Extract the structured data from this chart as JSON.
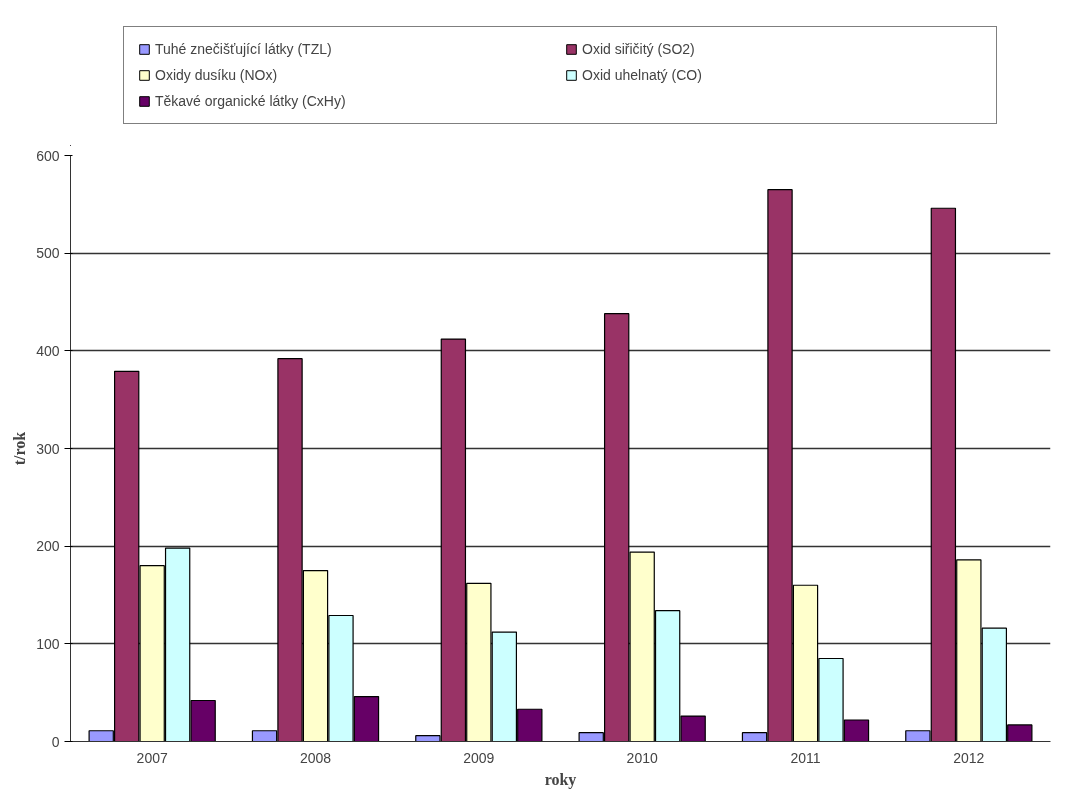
{
  "chart_data": {
    "type": "bar",
    "xlabel": "roky",
    "ylabel": "t/rok",
    "categories": [
      "2007",
      "2008",
      "2009",
      "2010",
      "2011",
      "2012"
    ],
    "series": [
      {
        "name": "Tuhé znečišťující látky (TZL)",
        "color": "#9999ff",
        "values": [
          11,
          11,
          6,
          9,
          9,
          11
        ]
      },
      {
        "name": "Oxid siřičitý (SO2)",
        "color": "#993366",
        "values": [
          379,
          392,
          412,
          438,
          565,
          546
        ]
      },
      {
        "name": "Oxidy dusíku (NOx)",
        "color": "#ffffcc",
        "values": [
          180,
          175,
          162,
          194,
          160,
          186
        ]
      },
      {
        "name": "Oxid uhelnatý (CO)",
        "color": "#ccffff",
        "values": [
          198,
          129,
          112,
          134,
          85,
          116
        ]
      },
      {
        "name": "Těkavé organické látky (CxHy)",
        "color": "#660066",
        "values": [
          42,
          46,
          33,
          26,
          22,
          17
        ]
      }
    ],
    "ylim": [
      0,
      600
    ],
    "yticks": [
      0,
      100,
      200,
      300,
      400,
      500,
      600
    ],
    "grid": "y",
    "legend": "top"
  }
}
